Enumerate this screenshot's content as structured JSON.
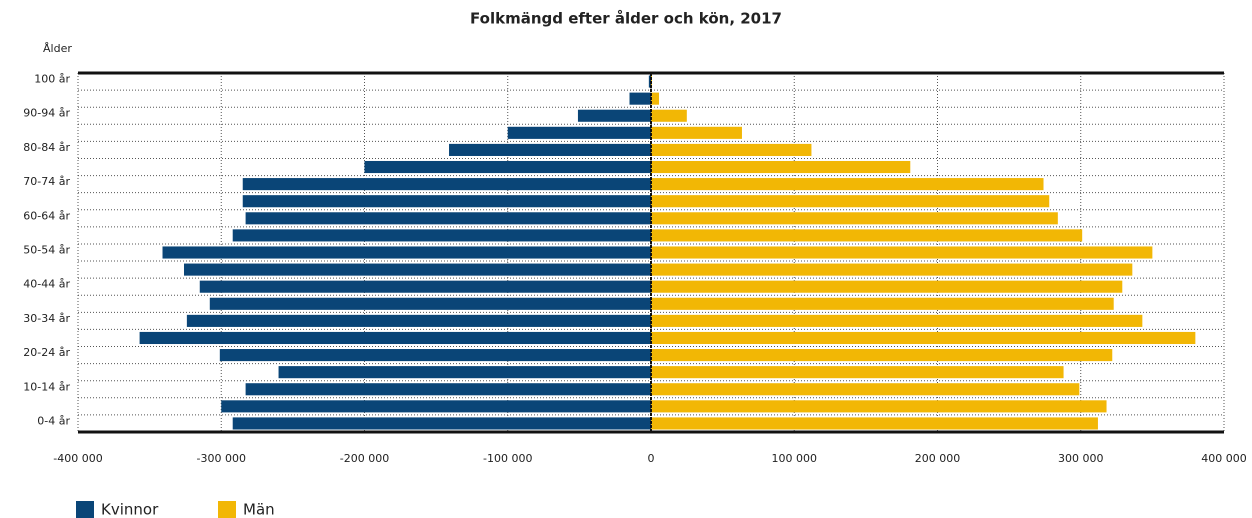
{
  "chart_data": {
    "type": "pyramid",
    "title": "Folkmängd efter ålder och kön, 2017",
    "y_label": "Ålder",
    "categories": [
      "0-4 år",
      null,
      "10-14 år",
      null,
      "20-24 år",
      null,
      "30-34 år",
      null,
      "40-44 år",
      null,
      "50-54 år",
      null,
      "60-64 år",
      null,
      "70-74 år",
      null,
      "80-84 år",
      null,
      "90-94 år",
      null,
      "100 år"
    ],
    "series": [
      {
        "name": "Kvinnor",
        "color": "#0a4577",
        "values": [
          -292000,
          -300000,
          -283000,
          -260000,
          -301000,
          -357000,
          -324000,
          -308000,
          -315000,
          -326000,
          -341000,
          -292000,
          -283000,
          -285000,
          -285000,
          -200000,
          -141000,
          -100000,
          -51000,
          -15000,
          -1500
        ]
      },
      {
        "name": "Män",
        "color": "#f2b705",
        "values": [
          312000,
          318000,
          299000,
          288000,
          322000,
          380000,
          343000,
          323000,
          329000,
          336000,
          350000,
          301000,
          284000,
          278000,
          274000,
          181000,
          112000,
          63500,
          25000,
          5600,
          700
        ]
      }
    ],
    "xlim": [
      -400000,
      400000
    ],
    "xticks": [
      {
        "value": -400000,
        "label": "-400 000"
      },
      {
        "value": -300000,
        "label": "-300 000"
      },
      {
        "value": -200000,
        "label": "-200 000"
      },
      {
        "value": -100000,
        "label": "-100 000"
      },
      0,
      {
        "value": 100000,
        "label": "100 000"
      },
      {
        "value": 200000,
        "label": "200 000"
      },
      {
        "value": 300000,
        "label": "300 000"
      },
      {
        "value": 400000,
        "label": "400 000"
      }
    ],
    "grid": true,
    "legend": "bottom-left"
  }
}
